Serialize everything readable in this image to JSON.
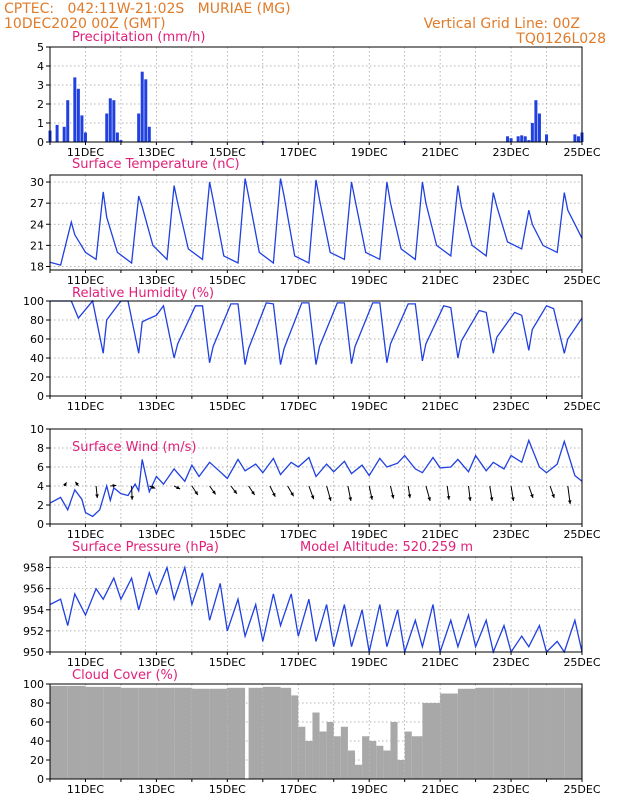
{
  "header": {
    "left_line1": "CPTEC:   042:11W-21:02S   MURIAE (MG)",
    "left_line2": "10DEC2020 00Z (GMT)",
    "right_line1": "Vertical Grid Line: 00Z",
    "right_line2": "TQ0126L028"
  },
  "colors": {
    "header": "#e07b2a",
    "title": "#e0207a",
    "series": "#2040e0",
    "cloud": "#a8a8a8",
    "grid": "#9a9a9a"
  },
  "chart_data": [
    {
      "type": "bar",
      "title": "Precipitation (mm/h)",
      "ylim": [
        0,
        5
      ],
      "yticks": [
        0,
        1,
        2,
        3,
        4,
        5
      ],
      "x_day_labels": [
        "11DEC",
        "13DEC",
        "15DEC",
        "17DEC",
        "19DEC",
        "21DEC",
        "23DEC",
        "25DEC"
      ],
      "day_range": [
        10.0,
        25.0
      ],
      "x": [
        10.0,
        10.2,
        10.4,
        10.5,
        10.7,
        10.8,
        10.9,
        11.0,
        11.6,
        11.7,
        11.8,
        11.9,
        12.0,
        12.5,
        12.6,
        12.7,
        12.8,
        14.0,
        16.0,
        20.0,
        22.9,
        23.0,
        23.2,
        23.3,
        23.4,
        23.5,
        23.6,
        23.7,
        23.8,
        24.0,
        24.8,
        24.9,
        25.0
      ],
      "values": [
        0.6,
        0.9,
        0.8,
        2.2,
        3.4,
        2.8,
        1.4,
        0.5,
        1.5,
        2.3,
        2.2,
        0.5,
        0.1,
        1.5,
        3.7,
        3.3,
        0.8,
        0.05,
        0.05,
        0.05,
        0.3,
        0.2,
        0.3,
        0.35,
        0.3,
        0.1,
        1.0,
        2.2,
        1.5,
        0.4,
        0.4,
        0.3,
        0.5
      ]
    },
    {
      "type": "line",
      "title": "Surface Temperature (nC)",
      "ylim": [
        17.5,
        31
      ],
      "yticks": [
        18,
        21,
        24,
        27,
        30
      ],
      "x_day_labels": [
        "11DEC",
        "13DEC",
        "15DEC",
        "17DEC",
        "19DEC",
        "21DEC",
        "23DEC",
        "25DEC"
      ],
      "day_range": [
        10.0,
        25.0
      ],
      "x": [
        10.0,
        10.3,
        10.6,
        10.7,
        11.0,
        11.3,
        11.5,
        11.6,
        11.9,
        12.3,
        12.5,
        12.6,
        12.9,
        13.3,
        13.5,
        13.6,
        13.9,
        14.3,
        14.5,
        14.6,
        14.9,
        15.3,
        15.5,
        15.6,
        15.9,
        16.3,
        16.5,
        16.6,
        16.9,
        17.3,
        17.5,
        17.6,
        17.9,
        18.3,
        18.5,
        18.6,
        18.9,
        19.3,
        19.5,
        19.6,
        19.9,
        20.3,
        20.5,
        20.6,
        20.9,
        21.3,
        21.5,
        21.6,
        21.9,
        22.3,
        22.5,
        22.6,
        22.9,
        23.3,
        23.5,
        23.6,
        23.9,
        24.3,
        24.5,
        24.6,
        24.9,
        25.0
      ],
      "values": [
        18.6,
        18.2,
        24.3,
        22.5,
        20.0,
        19.0,
        28.6,
        25.0,
        20.0,
        18.5,
        28.0,
        26.5,
        21.0,
        19.0,
        29.5,
        27.0,
        20.5,
        19.0,
        30.0,
        27.5,
        19.5,
        18.5,
        30.5,
        28.0,
        20.0,
        18.5,
        30.5,
        28.0,
        19.5,
        18.5,
        30.3,
        27.5,
        20.0,
        19.0,
        30.0,
        27.5,
        20.0,
        19.0,
        30.0,
        27.0,
        20.5,
        19.0,
        30.0,
        27.0,
        21.0,
        19.5,
        29.5,
        26.5,
        21.0,
        19.5,
        28.5,
        26.5,
        21.5,
        20.5,
        26.0,
        24.0,
        21.0,
        20.0,
        28.5,
        26.0,
        23.0,
        22.0
      ]
    },
    {
      "type": "line",
      "title": "Relative Humidity (%)",
      "ylim": [
        0,
        100
      ],
      "yticks": [
        0,
        20,
        40,
        60,
        80,
        100
      ],
      "x_day_labels": [
        "11DEC",
        "13DEC",
        "15DEC",
        "17DEC",
        "19DEC",
        "21DEC",
        "23DEC",
        "25DEC"
      ],
      "day_range": [
        10.0,
        25.0
      ],
      "x": [
        10.0,
        10.4,
        10.6,
        10.8,
        11.2,
        11.5,
        11.6,
        12.0,
        12.2,
        12.5,
        12.6,
        12.7,
        13.0,
        13.2,
        13.5,
        13.6,
        14.1,
        14.3,
        14.5,
        14.6,
        15.1,
        15.3,
        15.5,
        15.6,
        16.1,
        16.3,
        16.5,
        16.6,
        17.1,
        17.3,
        17.5,
        17.6,
        18.1,
        18.3,
        18.5,
        18.6,
        19.1,
        19.3,
        19.5,
        19.6,
        20.1,
        20.3,
        20.5,
        20.6,
        21.1,
        21.3,
        21.5,
        21.6,
        22.1,
        22.3,
        22.5,
        22.6,
        23.1,
        23.3,
        23.5,
        23.6,
        24.0,
        24.2,
        24.5,
        24.6,
        25.0
      ],
      "values": [
        100,
        100,
        100,
        82,
        100,
        45,
        80,
        100,
        100,
        45,
        78,
        80,
        85,
        95,
        40,
        55,
        95,
        95,
        35,
        52,
        97,
        97,
        33,
        50,
        98,
        97,
        33,
        50,
        98,
        98,
        33,
        52,
        98,
        98,
        34,
        52,
        98,
        98,
        35,
        55,
        97,
        97,
        37,
        55,
        95,
        93,
        40,
        58,
        90,
        88,
        45,
        62,
        88,
        85,
        48,
        70,
        95,
        92,
        45,
        60,
        82
      ]
    },
    {
      "type": "line",
      "title": "Surface Wind (m/s)",
      "ylim": [
        0,
        10
      ],
      "yticks": [
        0,
        2,
        4,
        6,
        8,
        10
      ],
      "x_day_labels": [
        "11DEC",
        "13DEC",
        "15DEC",
        "17DEC",
        "19DEC",
        "21DEC",
        "23DEC",
        "25DEC"
      ],
      "day_range": [
        10.0,
        25.0
      ],
      "x": [
        10.0,
        10.3,
        10.5,
        10.7,
        10.9,
        11.0,
        11.2,
        11.4,
        11.6,
        11.7,
        11.8,
        12.0,
        12.2,
        12.4,
        12.5,
        12.6,
        12.8,
        13.0,
        13.2,
        13.5,
        13.8,
        14.0,
        14.2,
        14.5,
        14.8,
        15.0,
        15.3,
        15.5,
        15.8,
        16.0,
        16.3,
        16.5,
        16.8,
        17.0,
        17.3,
        17.5,
        17.8,
        18.0,
        18.3,
        18.5,
        18.8,
        19.0,
        19.3,
        19.5,
        19.8,
        20.0,
        20.3,
        20.5,
        20.8,
        21.0,
        21.3,
        21.5,
        21.8,
        22.0,
        22.3,
        22.5,
        22.8,
        23.0,
        23.3,
        23.5,
        23.8,
        24.0,
        24.3,
        24.5,
        24.8,
        25.0
      ],
      "values": [
        2.2,
        2.8,
        1.5,
        3.6,
        2.6,
        1.2,
        0.8,
        1.5,
        4.0,
        2.5,
        3.8,
        3.2,
        3.0,
        4.2,
        3.5,
        6.8,
        3.4,
        5.0,
        4.2,
        5.8,
        4.5,
        6.2,
        5.0,
        6.5,
        5.5,
        4.8,
        6.8,
        5.6,
        6.3,
        5.4,
        6.9,
        5.2,
        6.5,
        6.0,
        7.0,
        5.0,
        6.3,
        5.5,
        6.6,
        5.3,
        6.2,
        5.1,
        6.9,
        6.0,
        6.4,
        7.2,
        5.8,
        5.4,
        7.0,
        5.9,
        6.0,
        6.8,
        5.5,
        7.2,
        5.6,
        6.5,
        5.8,
        7.2,
        6.5,
        8.8,
        6.0,
        5.4,
        6.3,
        8.7,
        5.1,
        4.5
      ],
      "vectors": {
        "x": [
          10.4,
          10.8,
          11.3,
          11.7,
          12.3,
          12.8,
          13.5,
          14.0,
          14.5,
          15.1,
          15.6,
          16.2,
          16.7,
          17.3,
          17.8,
          18.4,
          19.0,
          19.6,
          20.1,
          20.6,
          21.2,
          21.8,
          22.4,
          23.0,
          23.5,
          24.1,
          24.6
        ],
        "u": [
          0.4,
          -0.5,
          0.2,
          1.0,
          0.1,
          1.0,
          1.0,
          1.0,
          1.0,
          1.0,
          1.0,
          0.9,
          1.0,
          0.8,
          0.7,
          0.5,
          0.5,
          0.5,
          0.3,
          0.7,
          0.3,
          0.3,
          0.4,
          0.4,
          0.7,
          0.7,
          0.4
        ],
        "v": [
          0.6,
          0.7,
          -2.0,
          0.1,
          -2.3,
          -0.4,
          -0.5,
          -1.5,
          -1.4,
          -1.3,
          -1.5,
          -1.8,
          -1.7,
          -2.2,
          -2.5,
          -2.5,
          -2.3,
          -2.1,
          -2.0,
          -2.5,
          -2.3,
          -2.5,
          -2.5,
          -2.5,
          -2.0,
          -2.0,
          -3.0
        ]
      }
    },
    {
      "type": "line",
      "title": "Surface Pressure (hPa)",
      "subtitle": "Model Altitude: 520.259  m",
      "ylim": [
        950,
        959
      ],
      "yticks": [
        950,
        952,
        954,
        956,
        958
      ],
      "x_day_labels": [
        "11DEC",
        "13DEC",
        "15DEC",
        "17DEC",
        "19DEC",
        "21DEC",
        "23DEC",
        "25DEC"
      ],
      "day_range": [
        10.0,
        25.0
      ],
      "x": [
        10.0,
        10.3,
        10.5,
        10.7,
        11.0,
        11.3,
        11.5,
        11.8,
        12.0,
        12.3,
        12.5,
        12.8,
        13.0,
        13.3,
        13.5,
        13.8,
        14.0,
        14.3,
        14.5,
        14.8,
        15.0,
        15.3,
        15.5,
        15.8,
        16.0,
        16.3,
        16.5,
        16.8,
        17.0,
        17.3,
        17.5,
        17.8,
        18.0,
        18.3,
        18.5,
        18.8,
        19.0,
        19.3,
        19.5,
        19.8,
        20.0,
        20.3,
        20.5,
        20.8,
        21.0,
        21.3,
        21.5,
        21.8,
        22.0,
        22.3,
        22.5,
        22.8,
        23.0,
        23.3,
        23.5,
        23.8,
        24.0,
        24.3,
        24.5,
        24.8,
        25.0
      ],
      "values": [
        954.5,
        955.0,
        952.5,
        955.5,
        953.5,
        956.0,
        955.0,
        957.0,
        955.0,
        957.0,
        954.0,
        957.5,
        955.5,
        958.0,
        955.0,
        958.0,
        954.5,
        957.5,
        953.0,
        956.5,
        952.0,
        955.0,
        951.5,
        954.5,
        951.0,
        955.5,
        952.5,
        955.5,
        951.5,
        955.0,
        951.0,
        954.5,
        950.5,
        954.5,
        950.5,
        954.0,
        950.0,
        954.5,
        950.5,
        954.0,
        949.5,
        953.0,
        950.5,
        954.5,
        950.0,
        953.0,
        950.5,
        953.5,
        950.5,
        953.0,
        950.0,
        952.5,
        949.5,
        951.5,
        950.5,
        952.5,
        949.5,
        951.0,
        950.0,
        953.0,
        950.0
      ]
    },
    {
      "type": "bar",
      "title": "Cloud Cover (%)",
      "ylim": [
        0,
        100
      ],
      "yticks": [
        0,
        20,
        40,
        60,
        80,
        100
      ],
      "x_day_labels": [
        "11DEC",
        "13DEC",
        "15DEC",
        "17DEC",
        "19DEC",
        "21DEC",
        "23DEC",
        "25DEC"
      ],
      "day_range": [
        10.0,
        25.0
      ],
      "x": [
        10.0,
        10.5,
        11.0,
        11.5,
        12.0,
        12.5,
        13.0,
        13.5,
        14.0,
        14.5,
        15.0,
        15.4,
        15.5,
        15.6,
        16.0,
        16.5,
        16.8,
        17.0,
        17.2,
        17.4,
        17.6,
        17.8,
        18.0,
        18.2,
        18.4,
        18.6,
        18.8,
        19.0,
        19.2,
        19.4,
        19.6,
        19.8,
        20.0,
        20.2,
        20.5,
        21.0,
        21.5,
        22.0,
        22.5,
        23.0,
        23.5,
        24.0,
        24.5,
        25.0
      ],
      "values": [
        98,
        98,
        97,
        97,
        96,
        96,
        96,
        96,
        95,
        95,
        96,
        96,
        0,
        96,
        97,
        96,
        88,
        55,
        40,
        70,
        50,
        60,
        45,
        55,
        30,
        15,
        45,
        40,
        35,
        30,
        60,
        20,
        50,
        45,
        80,
        90,
        95,
        96,
        96,
        96,
        96,
        96,
        96,
        96
      ]
    }
  ]
}
